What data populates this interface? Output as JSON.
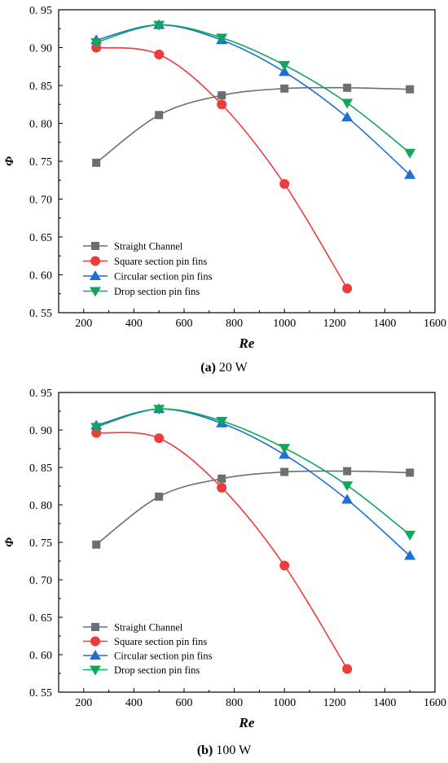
{
  "chart_data": [
    {
      "type": "line",
      "caption_label": "(a)",
      "caption_text": " 20 W",
      "xlabel": "Re",
      "ylabel": "Φ",
      "xlim": [
        100,
        1600
      ],
      "ylim": [
        0.55,
        0.95
      ],
      "xticks": [
        200,
        400,
        600,
        800,
        1000,
        1200,
        1400,
        1600
      ],
      "yticks": [
        0.55,
        0.6,
        0.65,
        0.7,
        0.75,
        0.8,
        0.85,
        0.9,
        0.95
      ],
      "legend_position": "bottom-left",
      "grid": false,
      "series": [
        {
          "name": "Straight Channel",
          "color": "#6e6e6e",
          "marker": "square",
          "x": [
            250,
            500,
            750,
            1000,
            1250,
            1500
          ],
          "y": [
            0.748,
            0.811,
            0.837,
            0.846,
            0.847,
            0.845
          ]
        },
        {
          "name": "Square section pin fins",
          "color": "#ee3b3b",
          "marker": "circle",
          "x": [
            250,
            500,
            750,
            1000,
            1250
          ],
          "y": [
            0.9,
            0.891,
            0.825,
            0.72,
            0.582
          ]
        },
        {
          "name": "Circular section pin fins",
          "color": "#1f6fd1",
          "marker": "triangle-up",
          "x": [
            250,
            500,
            750,
            1000,
            1250,
            1500
          ],
          "y": [
            0.91,
            0.93,
            0.91,
            0.868,
            0.808,
            0.732
          ]
        },
        {
          "name": "Drop section pin fins",
          "color": "#12a65a",
          "marker": "triangle-down",
          "x": [
            250,
            500,
            750,
            1000,
            1250,
            1500
          ],
          "y": [
            0.907,
            0.93,
            0.913,
            0.877,
            0.827,
            0.761
          ]
        }
      ]
    },
    {
      "type": "line",
      "caption_label": "(b)",
      "caption_text": " 100 W",
      "xlabel": "Re",
      "ylabel": "Φ",
      "xlim": [
        100,
        1600
      ],
      "ylim": [
        0.55,
        0.95
      ],
      "xticks": [
        200,
        400,
        600,
        800,
        1000,
        1200,
        1400,
        1600
      ],
      "yticks": [
        0.55,
        0.6,
        0.65,
        0.7,
        0.75,
        0.8,
        0.85,
        0.9,
        0.95
      ],
      "legend_position": "bottom-left",
      "grid": false,
      "series": [
        {
          "name": "Straight Channel",
          "color": "#6e6e6e",
          "marker": "square",
          "x": [
            250,
            500,
            750,
            1000,
            1250,
            1500
          ],
          "y": [
            0.747,
            0.811,
            0.835,
            0.844,
            0.845,
            0.843
          ]
        },
        {
          "name": "Square section pin fins",
          "color": "#ee3b3b",
          "marker": "circle",
          "x": [
            250,
            500,
            750,
            1000,
            1250
          ],
          "y": [
            0.896,
            0.889,
            0.823,
            0.719,
            0.581
          ]
        },
        {
          "name": "Circular section pin fins",
          "color": "#1f6fd1",
          "marker": "triangle-up",
          "x": [
            250,
            500,
            750,
            1000,
            1250,
            1500
          ],
          "y": [
            0.906,
            0.928,
            0.909,
            0.867,
            0.807,
            0.732
          ]
        },
        {
          "name": "Drop section pin fins",
          "color": "#12a65a",
          "marker": "triangle-down",
          "x": [
            250,
            500,
            750,
            1000,
            1250,
            1500
          ],
          "y": [
            0.904,
            0.928,
            0.912,
            0.876,
            0.826,
            0.76
          ]
        }
      ]
    }
  ]
}
